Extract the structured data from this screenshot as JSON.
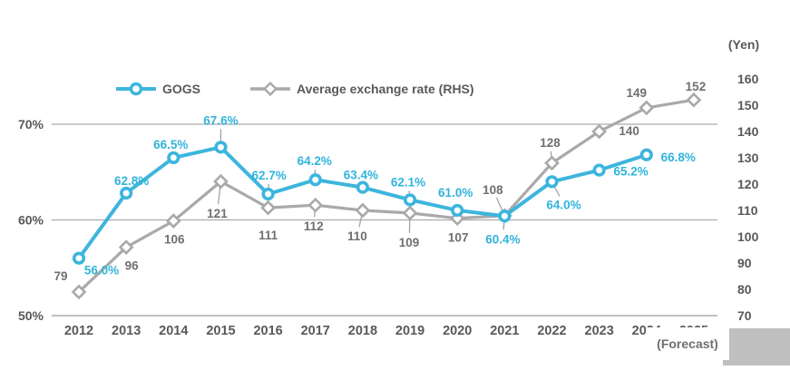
{
  "chart_data": {
    "type": "line",
    "title": "",
    "categories": [
      "2012",
      "2013",
      "2014",
      "2015",
      "2016",
      "2017",
      "2018",
      "2019",
      "2020",
      "2021",
      "2022",
      "2023",
      "2024",
      "2025"
    ],
    "series": [
      {
        "name": "GOGS",
        "axis": "left",
        "marker": "circle",
        "color": "#3db5dd",
        "label_color": "#31b4dc",
        "values": [
          56.0,
          62.8,
          66.5,
          67.6,
          62.7,
          64.2,
          63.4,
          62.1,
          61.0,
          60.4,
          64.0,
          65.2,
          66.8,
          null
        ],
        "labels": [
          "56.0%",
          "62.8%",
          "66.5%",
          "67.6%",
          "62.7%",
          "64.2%",
          "63.4%",
          "62.1%",
          "61.0%",
          "60.4%",
          "64.0%",
          "65.2%",
          "66.8%",
          ""
        ]
      },
      {
        "name": "Average exchange rate (RHS)",
        "axis": "right",
        "marker": "diamond",
        "color": "#a9a9a9",
        "label_color": "#6f6f6f",
        "values": [
          79,
          96,
          106,
          121,
          111,
          112,
          110,
          109,
          107,
          108,
          128,
          140,
          149,
          152
        ],
        "labels": [
          "79",
          "96",
          "106",
          "121",
          "111",
          "112",
          "110",
          "109",
          "107",
          "108",
          "128",
          "140",
          "149",
          "152"
        ]
      }
    ],
    "left_axis": {
      "range": [
        50,
        70
      ],
      "ticks": [
        {
          "v": 50,
          "label": "50%"
        },
        {
          "v": 60,
          "label": "60%"
        },
        {
          "v": 70,
          "label": "70%"
        }
      ]
    },
    "right_axis": {
      "range": [
        70,
        160
      ],
      "title": "(Yen)",
      "ticks": [
        {
          "v": 70,
          "label": "70"
        },
        {
          "v": 80,
          "label": "80"
        },
        {
          "v": 90,
          "label": "90"
        },
        {
          "v": 100,
          "label": "100"
        },
        {
          "v": 110,
          "label": "110"
        },
        {
          "v": 120,
          "label": "120"
        },
        {
          "v": 130,
          "label": "130"
        },
        {
          "v": 140,
          "label": "140"
        },
        {
          "v": 150,
          "label": "150"
        },
        {
          "v": 160,
          "label": "160"
        }
      ]
    },
    "forecast_label": "(Forecast)",
    "legend_position": "top",
    "grid": true,
    "grid_color": "#ababab",
    "axis_text_color": "#595959"
  }
}
